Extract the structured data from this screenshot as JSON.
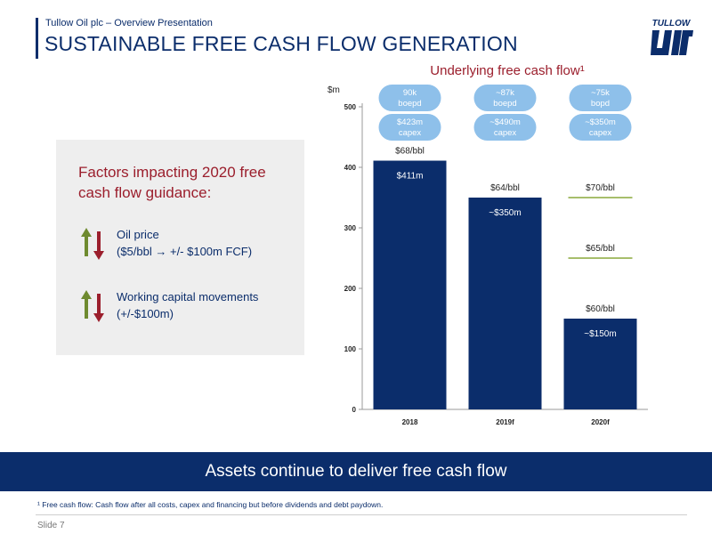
{
  "header": {
    "subtitle": "Tullow Oil plc – Overview Presentation",
    "title": "SUSTAINABLE FREE CASH FLOW GENERATION",
    "logo_text": "TULLOW"
  },
  "factors": {
    "heading": "Factors impacting 2020 free cash flow guidance:",
    "items": [
      {
        "line1": "Oil price",
        "line2": "($5/bbl → +/- $100m FCF)"
      },
      {
        "line1": "Working capital movements",
        "line2": "(+/-$100m)"
      }
    ]
  },
  "chart_data": {
    "type": "bar",
    "title": "Underlying free cash flow¹",
    "ylabel": "$m",
    "ylim": [
      0,
      500
    ],
    "yticks": [
      0,
      100,
      200,
      300,
      400,
      500
    ],
    "categories": [
      "2018",
      "2019f",
      "2020f"
    ],
    "values": [
      411,
      350,
      150
    ],
    "value_labels": [
      "$411m",
      "~$350m",
      "~$150m"
    ],
    "oil_price_labels": [
      {
        "label": "$68/bbl",
        "category": "2018",
        "y": 411
      },
      {
        "label": "$64/bbl",
        "category": "2019f",
        "y": 350
      },
      {
        "label": "$70/bbl",
        "category": "2020f",
        "y": 350
      },
      {
        "label": "$65/bbl",
        "category": "2020f",
        "y": 250
      },
      {
        "label": "$60/bbl",
        "category": "2020f",
        "y": 150
      }
    ],
    "reference_lines": [
      {
        "category": "2020f",
        "y": 350
      },
      {
        "category": "2020f",
        "y": 250
      }
    ],
    "production_badges": [
      "90k boepd",
      "~87k boepd",
      "~75k bopd"
    ],
    "capex_badges": [
      "$423m capex",
      "~$490m capex",
      "~$350m capex"
    ],
    "grid": false
  },
  "colors": {
    "navy": "#0b2d6b",
    "bar": "#0b2d6b",
    "badge": "#8ec0ea",
    "title_red": "#9b1e2c",
    "reference_line": "#8aa83c",
    "arrow_up": "#6e8a2f",
    "arrow_down": "#9b1e2c"
  },
  "footer": {
    "banner": "Assets continue to deliver free cash flow",
    "footnote": "¹ Free cash flow: Cash flow after all costs, capex and financing but before dividends and debt paydown.",
    "slide_number": "Slide 7"
  }
}
